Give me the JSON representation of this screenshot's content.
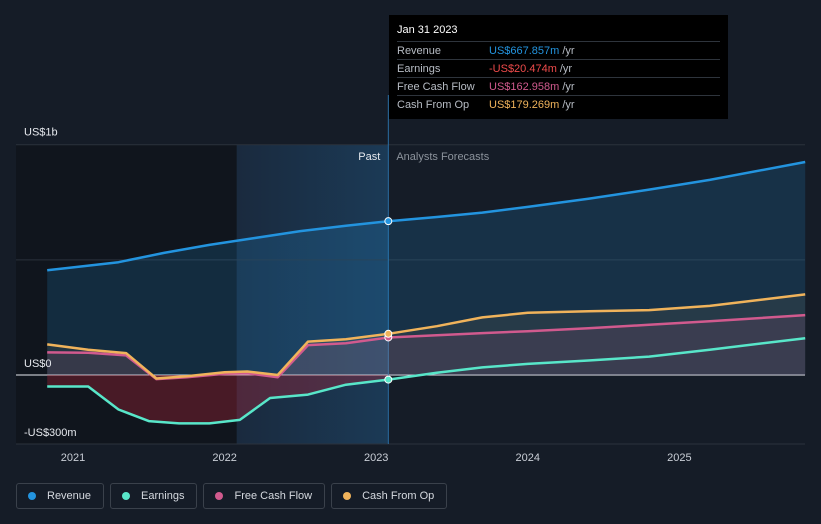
{
  "chart_data": {
    "type": "line",
    "x_ticks": [
      "2021",
      "2022",
      "2023",
      "2024",
      "2025"
    ],
    "y_labels": [
      "US$1b",
      "US$0",
      "-US$300m"
    ],
    "ylim": [
      -300,
      1000
    ],
    "divider_labels": {
      "past": "Past",
      "forecast": "Analysts Forecasts"
    },
    "highlight_date": "Jan 31 2023",
    "series": [
      {
        "name": "Revenue",
        "color": "#2394df",
        "points": [
          [
            2020.83,
            455
          ],
          [
            2021.0,
            467
          ],
          [
            2021.3,
            490
          ],
          [
            2021.6,
            530
          ],
          [
            2021.9,
            565
          ],
          [
            2022.2,
            595
          ],
          [
            2022.5,
            625
          ],
          [
            2022.8,
            648
          ],
          [
            2023.08,
            668
          ],
          [
            2023.4,
            686
          ],
          [
            2023.7,
            705
          ],
          [
            2024.0,
            730
          ],
          [
            2024.4,
            765
          ],
          [
            2024.8,
            805
          ],
          [
            2025.2,
            847
          ],
          [
            2025.83,
            925
          ]
        ]
      },
      {
        "name": "Earnings",
        "color": "#58e6c9",
        "points": [
          [
            2020.83,
            -50
          ],
          [
            2021.1,
            -50
          ],
          [
            2021.3,
            -150
          ],
          [
            2021.5,
            -200
          ],
          [
            2021.7,
            -210
          ],
          [
            2021.9,
            -210
          ],
          [
            2022.1,
            -195
          ],
          [
            2022.3,
            -100
          ],
          [
            2022.55,
            -85
          ],
          [
            2022.8,
            -42
          ],
          [
            2023.08,
            -20
          ],
          [
            2023.4,
            10
          ],
          [
            2023.7,
            33
          ],
          [
            2024.0,
            48
          ],
          [
            2024.4,
            63
          ],
          [
            2024.8,
            80
          ],
          [
            2025.2,
            110
          ],
          [
            2025.83,
            160
          ]
        ]
      },
      {
        "name": "Free Cash Flow",
        "color": "#d15a8e",
        "points": [
          [
            2020.83,
            98
          ],
          [
            2021.1,
            97
          ],
          [
            2021.35,
            85
          ],
          [
            2021.55,
            -18
          ],
          [
            2021.75,
            -10
          ],
          [
            2022.0,
            5
          ],
          [
            2022.15,
            8
          ],
          [
            2022.35,
            -10
          ],
          [
            2022.55,
            130
          ],
          [
            2022.8,
            138
          ],
          [
            2023.08,
            163
          ],
          [
            2023.4,
            173
          ],
          [
            2023.7,
            182
          ],
          [
            2024.0,
            190
          ],
          [
            2024.4,
            203
          ],
          [
            2024.8,
            218
          ],
          [
            2025.2,
            233
          ],
          [
            2025.83,
            260
          ]
        ]
      },
      {
        "name": "Cash From Op",
        "color": "#f0b35b",
        "points": [
          [
            2020.83,
            133
          ],
          [
            2021.1,
            110
          ],
          [
            2021.35,
            95
          ],
          [
            2021.55,
            -15
          ],
          [
            2021.75,
            -5
          ],
          [
            2022.0,
            12
          ],
          [
            2022.15,
            15
          ],
          [
            2022.35,
            0
          ],
          [
            2022.55,
            145
          ],
          [
            2022.8,
            155
          ],
          [
            2023.08,
            179
          ],
          [
            2023.4,
            212
          ],
          [
            2023.7,
            250
          ],
          [
            2024.0,
            270
          ],
          [
            2024.4,
            277
          ],
          [
            2024.8,
            282
          ],
          [
            2025.2,
            300
          ],
          [
            2025.83,
            350
          ]
        ]
      }
    ]
  },
  "tooltip": {
    "date": "Jan 31 2023",
    "rows": [
      {
        "label": "Revenue",
        "value": "US$667.857m",
        "unit": "/yr",
        "color": "#2394df"
      },
      {
        "label": "Earnings",
        "value": "-US$20.474m",
        "unit": "/yr",
        "color": "#ef4b4b"
      },
      {
        "label": "Free Cash Flow",
        "value": "US$162.958m",
        "unit": "/yr",
        "color": "#d15a8e"
      },
      {
        "label": "Cash From Op",
        "value": "US$179.269m",
        "unit": "/yr",
        "color": "#f0b35b"
      }
    ]
  },
  "legend": [
    {
      "label": "Revenue",
      "color": "#2394df"
    },
    {
      "label": "Earnings",
      "color": "#58e6c9"
    },
    {
      "label": "Free Cash Flow",
      "color": "#d15a8e"
    },
    {
      "label": "Cash From Op",
      "color": "#f0b35b"
    }
  ]
}
